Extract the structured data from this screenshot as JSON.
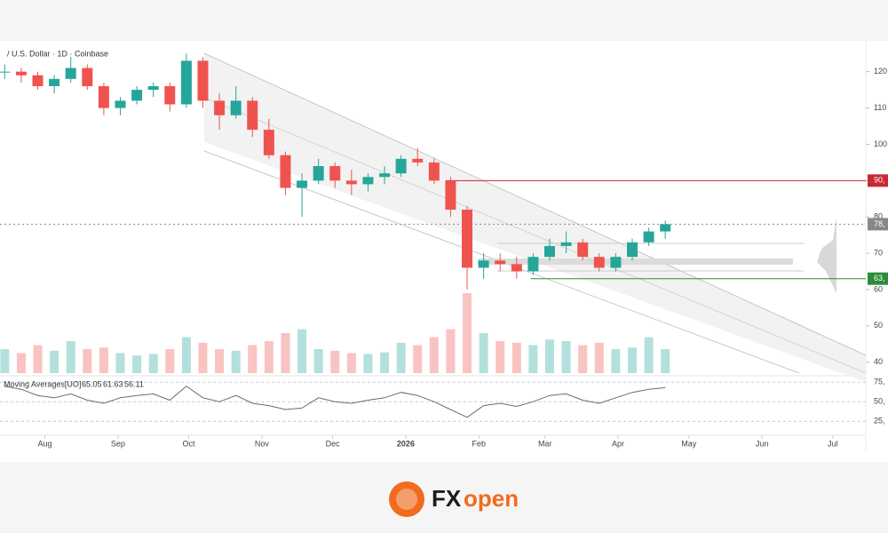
{
  "chart_data": {
    "type": "candlestick",
    "title": "/ U.S. Dollar · 1D · Coinbase",
    "x": [
      -17,
      -10,
      -3,
      4,
      11,
      18,
      25,
      32,
      39,
      46,
      53,
      60,
      67,
      74,
      81,
      88,
      95,
      102,
      109,
      116,
      123,
      130,
      137,
      144,
      151,
      158,
      165,
      172,
      179,
      186,
      193,
      200,
      207,
      214,
      221,
      228,
      235,
      242,
      249,
      256,
      263
    ],
    "open": [
      120,
      120,
      119,
      116,
      118,
      121,
      116,
      110,
      112,
      115,
      116,
      111,
      123,
      112,
      108,
      112,
      104,
      97,
      88,
      90,
      94,
      90,
      89,
      91,
      92,
      96,
      95,
      90,
      82,
      66,
      68,
      67,
      65,
      69,
      72,
      73,
      69,
      66,
      69,
      73,
      76
    ],
    "high": [
      122,
      121,
      120,
      119,
      124,
      122,
      117,
      113,
      116,
      117,
      117,
      125,
      124,
      114,
      116,
      113,
      107,
      98,
      92,
      96,
      95,
      93,
      92,
      94,
      97,
      99,
      96,
      91,
      83,
      70,
      70,
      69,
      70,
      74,
      76,
      74,
      70,
      70,
      74,
      77,
      79
    ],
    "low": [
      118,
      117,
      115,
      114,
      117,
      115,
      108,
      108,
      111,
      113,
      109,
      110,
      110,
      104,
      107,
      102,
      96,
      86,
      80,
      89,
      88,
      86,
      87,
      89,
      91,
      94,
      89,
      80,
      60,
      63,
      65,
      63,
      64,
      68,
      70,
      68,
      65,
      65,
      68,
      72,
      74
    ],
    "close": [
      120,
      119,
      116,
      118,
      121,
      116,
      110,
      112,
      115,
      116,
      111,
      123,
      112,
      108,
      112,
      104,
      97,
      88,
      90,
      94,
      90,
      89,
      91,
      92,
      96,
      95,
      90,
      82,
      66,
      68,
      67,
      65,
      69,
      72,
      73,
      69,
      66,
      69,
      73,
      76,
      78
    ],
    "up_color": "#26a69a",
    "down_color": "#ef5350",
    "volume": [
      30,
      25,
      35,
      28,
      40,
      30,
      32,
      25,
      22,
      24,
      30,
      45,
      38,
      30,
      28,
      35,
      40,
      50,
      55,
      30,
      28,
      25,
      24,
      26,
      38,
      35,
      45,
      55,
      100,
      50,
      40,
      38,
      35,
      42,
      40,
      35,
      38,
      30,
      32,
      45,
      30
    ],
    "vlim": [
      0,
      100
    ],
    "xlim": [
      -19,
      348
    ],
    "xticks": [
      {
        "value": 0,
        "label": "Aug"
      },
      {
        "value": 31,
        "label": "Sep"
      },
      {
        "value": 61,
        "label": "Oct"
      },
      {
        "value": 92,
        "label": "Nov"
      },
      {
        "value": 122,
        "label": "Dec"
      },
      {
        "value": 153,
        "label": "2026"
      },
      {
        "value": 184,
        "label": "Feb"
      },
      {
        "value": 212,
        "label": "Mar"
      },
      {
        "value": 243,
        "label": "Apr"
      },
      {
        "value": 273,
        "label": "May"
      },
      {
        "value": 304,
        "label": "Jun"
      },
      {
        "value": 334,
        "label": "Jul"
      }
    ],
    "ylim": [
      37,
      127.5
    ],
    "yticks": [
      120,
      110,
      100,
      90,
      80,
      70,
      60,
      50,
      40
    ],
    "price_lines": [
      {
        "value": 90,
        "label": "90,",
        "color": "#c62834",
        "start": 170
      },
      {
        "value": 78,
        "label": "78,",
        "color": "#888888",
        "start": -19
      },
      {
        "value": 63,
        "label": "63,",
        "color": "#2e8b3a",
        "start": 206
      }
    ],
    "indicator": {
      "name": "Moving Averages[UO]",
      "values": [
        65.05,
        61.63,
        56.11
      ],
      "line": [
        70,
        66,
        58,
        55,
        60,
        52,
        48,
        55,
        58,
        60,
        52,
        70,
        55,
        50,
        58,
        48,
        45,
        40,
        42,
        55,
        50,
        48,
        52,
        55,
        62,
        58,
        50,
        40,
        30,
        45,
        48,
        44,
        50,
        58,
        60,
        52,
        48,
        55,
        62,
        66,
        68
      ],
      "color": "#6b6b6b",
      "ylim": [
        7,
        81
      ],
      "yticks": [
        {
          "value": 75,
          "label": "75,"
        },
        {
          "value": 50,
          "label": "50,"
        },
        {
          "value": 25,
          "label": "25,"
        }
      ]
    },
    "brand": [
      "FX",
      "open"
    ]
  }
}
